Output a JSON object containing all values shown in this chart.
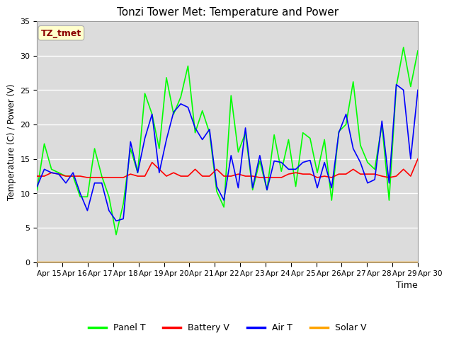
{
  "title": "Tonzi Tower Met: Temperature and Power",
  "xlabel": "Time",
  "ylabel": "Temperature (C) / Power (V)",
  "ylim": [
    0,
    35
  ],
  "yticks": [
    0,
    5,
    10,
    15,
    20,
    25,
    30,
    35
  ],
  "x_labels": [
    "Apr 15",
    "Apr 16",
    "Apr 17",
    "Apr 18",
    "Apr 19",
    "Apr 20",
    "Apr 21",
    "Apr 22",
    "Apr 23",
    "Apr 24",
    "Apr 25",
    "Apr 26",
    "Apr 27",
    "Apr 28",
    "Apr 29",
    "Apr 30"
  ],
  "annotation_text": "TZ_tmet",
  "annotation_color": "#8B0000",
  "annotation_bg": "#FFFFCC",
  "panel_T_color": "#00FF00",
  "battery_V_color": "#FF0000",
  "air_T_color": "#0000FF",
  "solar_V_color": "#FFA500",
  "bg_color": "#DCDCDC",
  "panel_T": [
    10.5,
    17.2,
    13.5,
    13.0,
    12.5,
    12.5,
    9.5,
    9.5,
    16.5,
    12.5,
    9.5,
    4.0,
    8.5,
    16.5,
    13.0,
    24.5,
    21.5,
    16.5,
    26.8,
    21.5,
    24.0,
    28.5,
    18.8,
    22.0,
    18.8,
    10.3,
    8.0,
    24.2,
    16.0,
    18.8,
    10.5,
    14.7,
    10.5,
    18.5,
    13.2,
    17.8,
    11.0,
    18.8,
    18.0,
    13.0,
    17.8,
    9.0,
    19.0,
    20.0,
    26.2,
    17.0,
    14.5,
    13.5,
    20.0,
    9.0,
    25.5,
    31.2,
    25.5,
    30.7
  ],
  "battery_V": [
    12.5,
    12.5,
    13.0,
    12.8,
    12.5,
    12.5,
    12.5,
    12.3,
    12.3,
    12.3,
    12.3,
    12.3,
    12.3,
    12.8,
    12.5,
    12.5,
    14.5,
    13.5,
    12.5,
    13.0,
    12.5,
    12.5,
    13.5,
    12.5,
    12.5,
    13.5,
    12.5,
    12.5,
    12.8,
    12.5,
    12.5,
    12.3,
    12.3,
    12.3,
    12.3,
    12.8,
    13.0,
    12.8,
    12.8,
    12.3,
    12.5,
    12.3,
    12.8,
    12.8,
    13.5,
    12.8,
    12.8,
    12.8,
    12.5,
    12.3,
    12.5,
    13.5,
    12.5,
    15.0
  ],
  "air_T": [
    11.0,
    13.5,
    13.0,
    12.8,
    11.5,
    13.0,
    10.0,
    7.5,
    11.5,
    11.5,
    7.5,
    6.0,
    6.3,
    17.5,
    13.0,
    18.0,
    21.5,
    13.0,
    17.8,
    21.8,
    23.0,
    22.5,
    19.5,
    17.8,
    19.3,
    11.0,
    9.0,
    15.5,
    10.8,
    19.5,
    10.8,
    15.5,
    10.5,
    14.7,
    14.5,
    13.5,
    13.5,
    14.5,
    14.8,
    10.8,
    14.5,
    10.8,
    18.8,
    21.5,
    16.5,
    14.5,
    11.5,
    12.0,
    20.5,
    11.5,
    25.8,
    25.0,
    15.0,
    25.0
  ],
  "solar_V": [
    0.0,
    0.0,
    0.0,
    0.0,
    0.0,
    0.0,
    0.0,
    0.0,
    0.0,
    0.0,
    0.0,
    0.0,
    0.0,
    0.0,
    0.0,
    0.0,
    0.0,
    0.0,
    0.0,
    0.0,
    0.0,
    0.0,
    0.0,
    0.0,
    0.0,
    0.0,
    0.0,
    0.0,
    0.0,
    0.0,
    0.0,
    0.0,
    0.0,
    0.0,
    0.0,
    0.0,
    0.0,
    0.0,
    0.0,
    0.0,
    0.0,
    0.0,
    0.0,
    0.0,
    0.0,
    0.0,
    0.0,
    0.0,
    0.0,
    0.0,
    0.0,
    0.0,
    0.0,
    0.0
  ]
}
